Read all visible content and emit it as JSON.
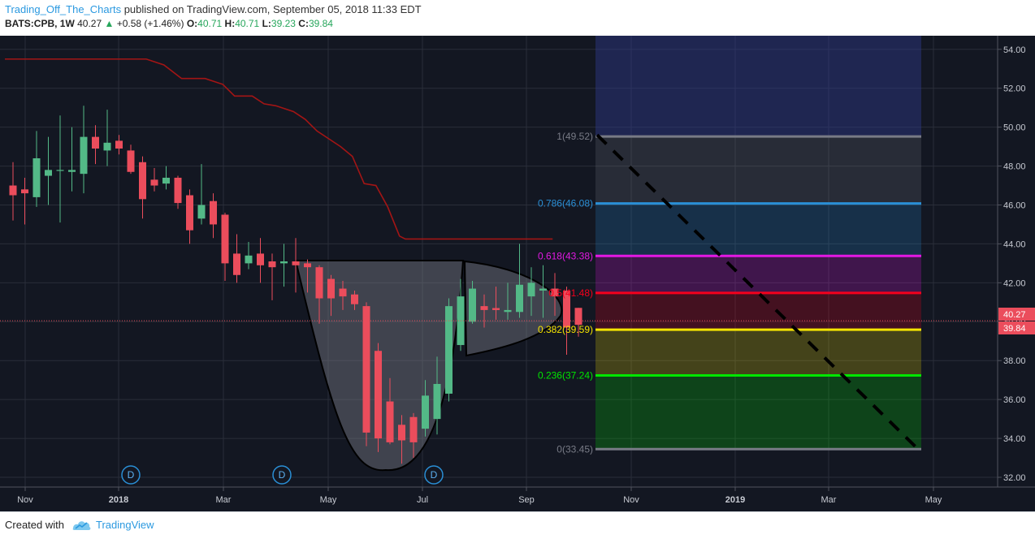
{
  "header": {
    "author": "Trading_Off_The_Charts",
    "published": " published on TradingView.com, September 05, 2018 11:33 EDT",
    "symbol": "BATS:CPB, 1W",
    "last": "40.27",
    "change": "+0.58 (+1.46%)",
    "o_label": "O:",
    "o": "40.71",
    "h_label": "H:",
    "h": "40.71",
    "l_label": "L:",
    "l": "39.23",
    "c_label": "C:",
    "c": "39.84"
  },
  "footer": {
    "created_with": "Created with",
    "brand": "TradingView"
  },
  "colors": {
    "background": "#131722",
    "up": "#53b987",
    "down": "#eb4d5c",
    "red_line": "#a31515",
    "axis_text": "#c8cbd3"
  },
  "chart_data": {
    "type": "candlestick",
    "interval": "1W",
    "ylim": [
      31.5,
      54.7
    ],
    "y_ticks": [
      "54.00",
      "52.00",
      "50.00",
      "48.00",
      "46.00",
      "44.00",
      "42.00",
      "40.00",
      "38.00",
      "36.00",
      "34.00",
      "32.00"
    ],
    "x_ticks": [
      "Nov",
      "2018",
      "Mar",
      "May",
      "Jul",
      "Sep",
      "Nov",
      "2019",
      "Mar",
      "May"
    ],
    "price_labels": [
      "40.27",
      "39.84"
    ],
    "candles": [
      {
        "o": 47.0,
        "h": 48.2,
        "l": 45.2,
        "c": 46.5
      },
      {
        "o": 46.8,
        "h": 47.4,
        "l": 45.0,
        "c": 46.6
      },
      {
        "o": 46.4,
        "h": 49.8,
        "l": 45.9,
        "c": 48.4
      },
      {
        "o": 47.5,
        "h": 49.5,
        "l": 46.0,
        "c": 47.8
      },
      {
        "o": 47.8,
        "h": 50.6,
        "l": 45.1,
        "c": 47.8
      },
      {
        "o": 47.7,
        "h": 50.0,
        "l": 46.7,
        "c": 47.8
      },
      {
        "o": 47.6,
        "h": 51.1,
        "l": 46.6,
        "c": 49.5
      },
      {
        "o": 49.5,
        "h": 50.1,
        "l": 48.1,
        "c": 48.9
      },
      {
        "o": 48.8,
        "h": 50.9,
        "l": 48.0,
        "c": 49.2
      },
      {
        "o": 49.3,
        "h": 49.6,
        "l": 48.6,
        "c": 48.9
      },
      {
        "o": 48.8,
        "h": 49.1,
        "l": 47.6,
        "c": 47.7
      },
      {
        "o": 48.2,
        "h": 48.5,
        "l": 45.3,
        "c": 46.3
      },
      {
        "o": 47.3,
        "h": 47.9,
        "l": 46.7,
        "c": 47.0
      },
      {
        "o": 47.1,
        "h": 48.0,
        "l": 46.8,
        "c": 47.4
      },
      {
        "o": 47.4,
        "h": 47.5,
        "l": 45.8,
        "c": 46.1
      },
      {
        "o": 46.5,
        "h": 46.8,
        "l": 44.0,
        "c": 44.7
      },
      {
        "o": 45.3,
        "h": 48.1,
        "l": 45.0,
        "c": 46.0
      },
      {
        "o": 46.2,
        "h": 46.6,
        "l": 44.3,
        "c": 45.0
      },
      {
        "o": 45.5,
        "h": 45.6,
        "l": 42.1,
        "c": 43.0
      },
      {
        "o": 43.5,
        "h": 44.5,
        "l": 42.0,
        "c": 42.4
      },
      {
        "o": 43.0,
        "h": 44.1,
        "l": 42.7,
        "c": 43.4
      },
      {
        "o": 43.5,
        "h": 44.3,
        "l": 42.0,
        "c": 42.9
      },
      {
        "o": 43.1,
        "h": 43.5,
        "l": 41.1,
        "c": 42.8
      },
      {
        "o": 43.0,
        "h": 44.0,
        "l": 41.8,
        "c": 43.1
      },
      {
        "o": 43.1,
        "h": 44.3,
        "l": 41.5,
        "c": 42.9
      },
      {
        "o": 43.0,
        "h": 43.2,
        "l": 41.5,
        "c": 42.8
      },
      {
        "o": 42.8,
        "h": 42.9,
        "l": 39.9,
        "c": 41.2
      },
      {
        "o": 42.2,
        "h": 42.4,
        "l": 40.3,
        "c": 41.2
      },
      {
        "o": 41.7,
        "h": 42.1,
        "l": 40.6,
        "c": 41.3
      },
      {
        "o": 41.4,
        "h": 41.6,
        "l": 40.6,
        "c": 40.9
      },
      {
        "o": 40.8,
        "h": 41.0,
        "l": 33.6,
        "c": 34.3
      },
      {
        "o": 38.5,
        "h": 38.9,
        "l": 33.3,
        "c": 34.0
      },
      {
        "o": 35.9,
        "h": 37.1,
        "l": 33.7,
        "c": 33.8
      },
      {
        "o": 34.7,
        "h": 35.2,
        "l": 32.7,
        "c": 33.9
      },
      {
        "o": 35.1,
        "h": 35.3,
        "l": 33.0,
        "c": 33.8
      },
      {
        "o": 34.5,
        "h": 37.0,
        "l": 34.1,
        "c": 36.2
      },
      {
        "o": 35.0,
        "h": 38.2,
        "l": 34.2,
        "c": 36.8
      },
      {
        "o": 36.3,
        "h": 41.2,
        "l": 35.9,
        "c": 40.8
      },
      {
        "o": 38.8,
        "h": 42.2,
        "l": 38.5,
        "c": 41.3
      },
      {
        "o": 40.0,
        "h": 42.1,
        "l": 39.9,
        "c": 41.7
      },
      {
        "o": 40.8,
        "h": 41.4,
        "l": 39.7,
        "c": 40.6
      },
      {
        "o": 40.7,
        "h": 41.8,
        "l": 40.1,
        "c": 40.6
      },
      {
        "o": 40.5,
        "h": 42.0,
        "l": 40.1,
        "c": 40.6
      },
      {
        "o": 40.5,
        "h": 44.0,
        "l": 40.2,
        "c": 41.9
      },
      {
        "o": 41.3,
        "h": 42.8,
        "l": 40.3,
        "c": 42.0
      },
      {
        "o": 41.6,
        "h": 42.9,
        "l": 40.2,
        "c": 41.7
      },
      {
        "o": 41.7,
        "h": 42.5,
        "l": 40.3,
        "c": 41.3
      },
      {
        "o": 41.6,
        "h": 41.8,
        "l": 38.3,
        "c": 39.7
      },
      {
        "o": 40.71,
        "h": 40.71,
        "l": 39.23,
        "c": 39.84
      }
    ],
    "red_line": [
      [
        0,
        53.5
      ],
      [
        12,
        53.5
      ],
      [
        13.5,
        53.2
      ],
      [
        15,
        52.5
      ],
      [
        17,
        52.5
      ],
      [
        18.5,
        52.2
      ],
      [
        19.5,
        51.6
      ],
      [
        21,
        51.6
      ],
      [
        22,
        51.2
      ],
      [
        23,
        51.1
      ],
      [
        24.5,
        50.8
      ],
      [
        25.5,
        50.4
      ],
      [
        26.5,
        49.8
      ],
      [
        27.5,
        49.4
      ],
      [
        28.5,
        49.0
      ],
      [
        29.5,
        48.5
      ],
      [
        30.5,
        47.1
      ],
      [
        31.5,
        47.0
      ],
      [
        32.5,
        45.9
      ],
      [
        33.5,
        44.4
      ],
      [
        34,
        44.25
      ],
      [
        46.5,
        44.25
      ]
    ],
    "fib": {
      "levels": [
        {
          "label": "1(49.52)",
          "value": 49.52,
          "color": "#787b86"
        },
        {
          "label": "0.786(46.08)",
          "value": 46.08,
          "color": "#2a8fd6"
        },
        {
          "label": "0.618(43.38)",
          "value": 43.38,
          "color": "#e318e3"
        },
        {
          "label": "0.5(41.48)",
          "value": 41.48,
          "color": "#f5001c"
        },
        {
          "label": "0.382(39.59)",
          "value": 39.59,
          "color": "#f5e400"
        },
        {
          "label": "0.236(37.24)",
          "value": 37.24,
          "color": "#00e600"
        },
        {
          "label": "0(33.45)",
          "value": 33.45,
          "color": "#787b86"
        }
      ]
    },
    "dividend_markers": [
      "D",
      "D",
      "D"
    ]
  }
}
